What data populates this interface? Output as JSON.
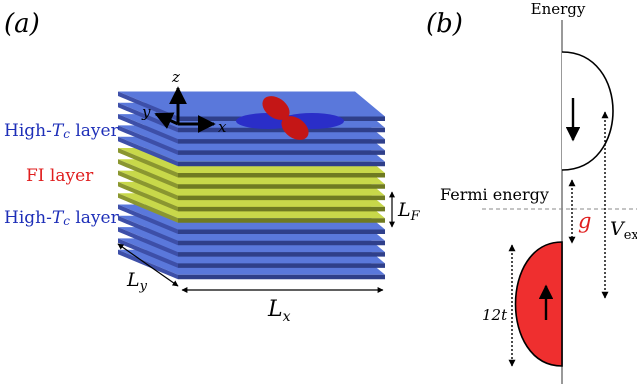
{
  "panel_a": {
    "label": "(a)",
    "layers": [
      "High",
      "high",
      "high",
      "high",
      "high",
      "fi",
      "fi",
      "fi",
      "fi",
      "fi",
      "high",
      "high",
      "high",
      "high",
      "high"
    ],
    "axes": {
      "x": "x",
      "y": "y",
      "z": "z"
    },
    "left_labels": [
      {
        "id": "top-high-tc",
        "prefix": "High-",
        "italic": "T",
        "sub": "c",
        "suffix": " layer"
      },
      {
        "id": "fi",
        "text": "FI layer"
      },
      {
        "id": "bottom-high-tc",
        "prefix": "High-",
        "italic": "T",
        "sub": "c",
        "suffix": " layer"
      }
    ],
    "dimensions": {
      "lf": {
        "main": "L",
        "sub": "F"
      },
      "lx": {
        "main": "L",
        "sub": "x"
      },
      "ly": {
        "main": "L",
        "sub": "y"
      }
    }
  },
  "panel_b": {
    "label": "(b)",
    "energy_label": "Energy",
    "fermi_label": "Fermi energy",
    "gap_label": "g",
    "vex": {
      "main": "V",
      "sub": "ex"
    },
    "bandwidth_label": "12t"
  },
  "colors": {
    "high_tc_layer": "#5a78db",
    "fi_layer": "#c8d84a",
    "label_blue": "#1e2fb8",
    "label_red": "#e01e1e",
    "orbital_red": "#c41616",
    "orbital_blue": "#2a2ec8",
    "band_red": "#ef2f2f"
  }
}
